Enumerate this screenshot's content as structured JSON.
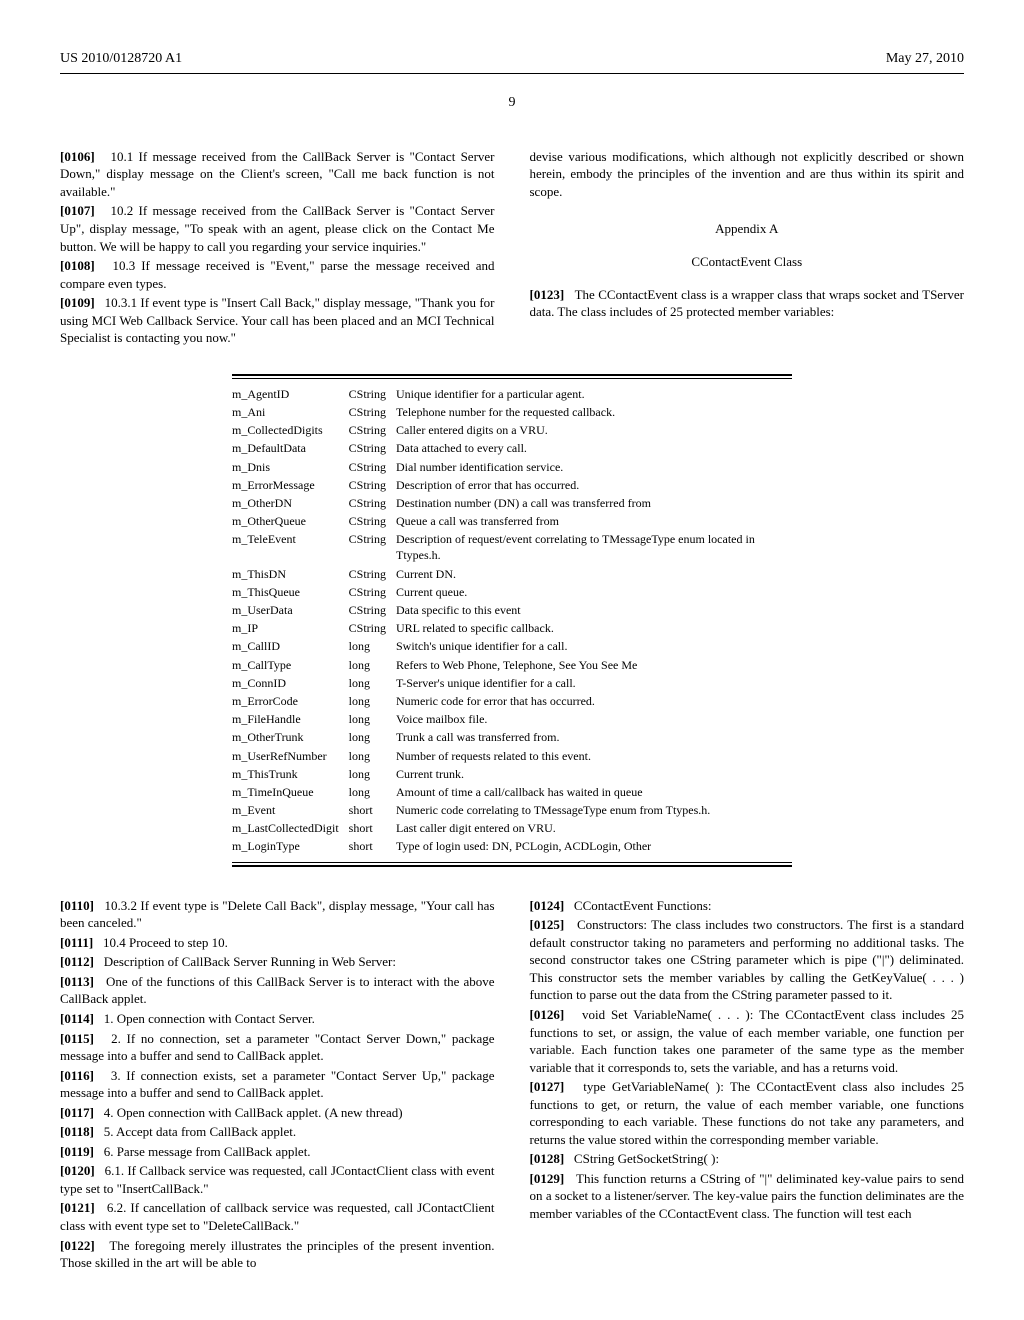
{
  "header": {
    "pub_number": "US 2010/0128720 A1",
    "date": "May 27, 2010",
    "page": "9"
  },
  "left_col": {
    "p0106": {
      "num": "[0106]",
      "text": "10.1 If message received from the CallBack Server is \"Contact Server Down,\" display message on the Client's screen, \"Call me back function is not available.\""
    },
    "p0107": {
      "num": "[0107]",
      "text": "10.2 If message received from the CallBack Server is \"Contact Server Up\", display message, \"To speak with an agent, please click on the Contact Me button. We will be happy to call you regarding your service inquiries.\""
    },
    "p0108": {
      "num": "[0108]",
      "text": "10.3 If message received is \"Event,\" parse the message received and compare even types."
    },
    "p0109": {
      "num": "[0109]",
      "text": "10.3.1 If event type is \"Insert Call Back,\" display message, \"Thank you for using MCI Web Callback Service. Your call has been placed and an MCI Technical Specialist is contacting you now.\""
    }
  },
  "right_col": {
    "continuation": "devise various modifications, which although not explicitly described or shown herein, embody the principles of the invention and are thus within its spirit and scope.",
    "appendix": "Appendix A",
    "class_title": "CContactEvent Class",
    "p0123": {
      "num": "[0123]",
      "text": "The CContactEvent class is a wrapper class that wraps socket and TServer data. The class includes of 25 protected member variables:"
    }
  },
  "table": {
    "rows": [
      [
        "m_AgentID",
        "CString",
        "Unique identifier for a particular agent."
      ],
      [
        "m_Ani",
        "CString",
        "Telephone number for the requested callback."
      ],
      [
        "m_CollectedDigits",
        "CString",
        "Caller entered digits on a VRU."
      ],
      [
        "m_DefaultData",
        "CString",
        "Data attached to every call."
      ],
      [
        "m_Dnis",
        "CString",
        "Dial number identification service."
      ],
      [
        "m_ErrorMessage",
        "CString",
        "Description of error that has occurred."
      ],
      [
        "m_OtherDN",
        "CString",
        "Destination number (DN) a call was transferred from"
      ],
      [
        "m_OtherQueue",
        "CString",
        "Queue a call was transferred from"
      ],
      [
        "m_TeleEvent",
        "CString",
        "Description of request/event correlating to TMessageType enum located in Ttypes.h."
      ],
      [
        "m_ThisDN",
        "CString",
        "Current DN."
      ],
      [
        "m_ThisQueue",
        "CString",
        "Current queue."
      ],
      [
        "m_UserData",
        "CString",
        "Data specific to this event"
      ],
      [
        "m_IP",
        "CString",
        "URL related to specific callback."
      ],
      [
        "m_CallID",
        "long",
        "Switch's unique identifier for a call."
      ],
      [
        "m_CallType",
        "long",
        "Refers to Web Phone, Telephone, See You See Me"
      ],
      [
        "m_ConnID",
        "long",
        "T-Server's unique identifier for a call."
      ],
      [
        "m_ErrorCode",
        "long",
        "Numeric code for error that has occurred."
      ],
      [
        "m_FileHandle",
        "long",
        "Voice mailbox file."
      ],
      [
        "m_OtherTrunk",
        "long",
        "Trunk a call was transferred from."
      ],
      [
        "m_UserRefNumber",
        "long",
        "Number of requests related to this event."
      ],
      [
        "m_ThisTrunk",
        "long",
        "Current trunk."
      ],
      [
        "m_TimeInQueue",
        "long",
        "Amount of time a call/callback has waited in queue"
      ],
      [
        "m_Event",
        "short",
        "Numeric code correlating to TMessageType enum from Ttypes.h."
      ],
      [
        "m_LastCollectedDigit",
        "short",
        "Last caller digit entered on VRU."
      ],
      [
        "m_LoginType",
        "short",
        "Type of login used: DN, PCLogin, ACDLogin, Other"
      ]
    ]
  },
  "left_col2": {
    "p0110": {
      "num": "[0110]",
      "text": "10.3.2 If event type is \"Delete Call Back\", display message, \"Your call has been canceled.\""
    },
    "p0111": {
      "num": "[0111]",
      "text": "10.4 Proceed to step 10."
    },
    "p0112": {
      "num": "[0112]",
      "text": "Description of CallBack Server Running in Web Server:"
    },
    "p0113": {
      "num": "[0113]",
      "text": "One of the functions of this CallBack Server is to interact with the above CallBack applet."
    },
    "p0114": {
      "num": "[0114]",
      "text": "1. Open connection with Contact Server."
    },
    "p0115": {
      "num": "[0115]",
      "text": "2. If no connection, set a parameter \"Contact Server Down,\" package message into a buffer and send to CallBack applet."
    },
    "p0116": {
      "num": "[0116]",
      "text": "3. If connection exists, set a parameter \"Contact Server Up,\" package message into a buffer and send to CallBack applet."
    },
    "p0117": {
      "num": "[0117]",
      "text": "4. Open connection with CallBack applet. (A new thread)"
    },
    "p0118": {
      "num": "[0118]",
      "text": "5. Accept data from CallBack applet."
    },
    "p0119": {
      "num": "[0119]",
      "text": "6. Parse message from CallBack applet."
    },
    "p0120": {
      "num": "[0120]",
      "text": "6.1. If Callback service was requested, call JContactClient class with event type set to \"InsertCallBack.\""
    },
    "p0121": {
      "num": "[0121]",
      "text": "6.2. If cancellation of callback service was requested, call JContactClient class with event type set to \"DeleteCallBack.\""
    },
    "p0122": {
      "num": "[0122]",
      "text": "The foregoing merely illustrates the principles of the present invention. Those skilled in the art will be able to"
    }
  },
  "right_col2": {
    "p0124": {
      "num": "[0124]",
      "text": "CContactEvent Functions:"
    },
    "p0125": {
      "num": "[0125]",
      "text": "Constructors: The class includes two constructors. The first is a standard default constructor taking no parameters and performing no additional tasks. The second constructor takes one CString parameter which is pipe (\"|\") deliminated. This constructor sets the member variables by calling the GetKeyValue( . . . ) function to parse out the data from the CString parameter passed to it."
    },
    "p0126": {
      "num": "[0126]",
      "text": "void Set VariableName( . . . ): The CContactEvent class includes 25 functions to set, or assign, the value of each member variable, one function per variable. Each function takes one parameter of the same type as the member variable that it corresponds to, sets the variable, and has a returns void."
    },
    "p0127": {
      "num": "[0127]",
      "text": "type GetVariableName( ): The CContactEvent class also includes 25 functions to get, or return, the value of each member variable, one functions corresponding to each variable. These functions do not take any parameters, and returns the value stored within the corresponding member variable."
    },
    "p0128": {
      "num": "[0128]",
      "text": "CString GetSocketString( ):"
    },
    "p0129": {
      "num": "[0129]",
      "text": "This function returns a CString of \"|\" deliminated key-value pairs to send on a socket to a listener/server. The key-value pairs the function deliminates are the member variables of the CContactEvent class. The function will test each"
    }
  }
}
